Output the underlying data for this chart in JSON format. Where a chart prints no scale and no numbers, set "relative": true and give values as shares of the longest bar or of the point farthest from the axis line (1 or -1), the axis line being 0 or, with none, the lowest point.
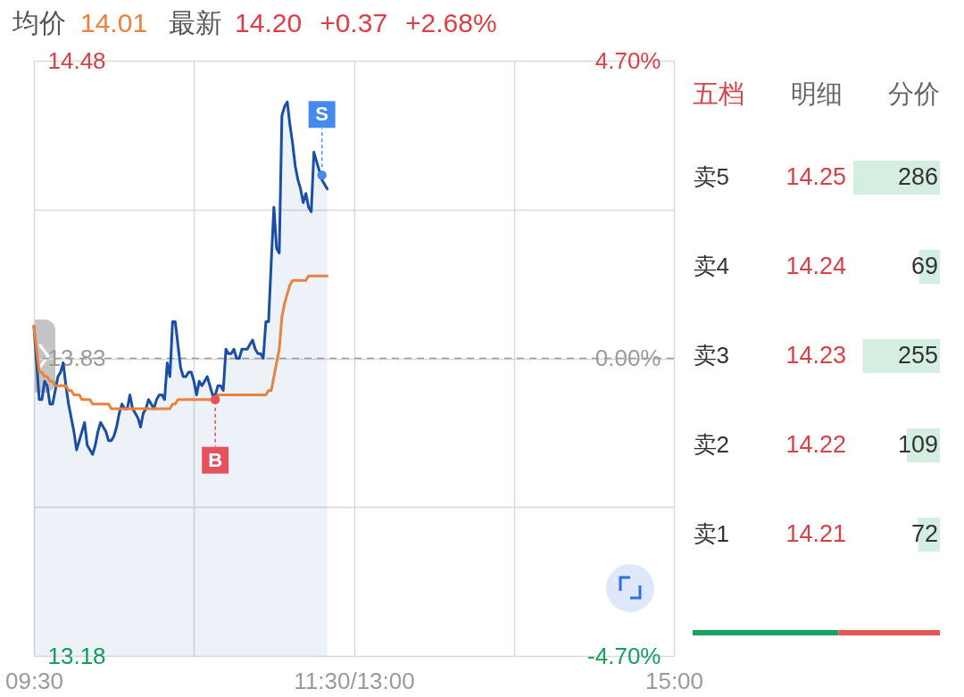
{
  "chart_data": [
    {
      "type": "line",
      "annotations": [
        "均价",
        "14.01",
        "最新",
        "14.20",
        "+0.37",
        "+2.68%"
      ],
      "categories": [
        "09:30",
        null,
        null,
        null,
        null,
        null,
        null,
        null,
        null,
        null,
        null,
        null,
        null,
        null,
        null,
        null,
        null,
        null,
        null,
        null,
        null,
        null,
        null,
        null,
        null,
        null,
        null,
        null,
        null,
        null,
        null,
        null,
        null,
        null,
        null,
        null,
        null,
        null,
        null,
        null,
        null,
        null,
        null,
        null,
        null,
        null,
        null,
        null,
        null,
        null,
        null,
        null,
        null,
        null,
        null,
        null,
        null,
        null,
        null,
        null,
        null,
        null,
        null,
        null,
        null,
        null,
        null,
        null,
        null,
        null,
        null,
        null,
        null,
        null,
        null,
        null,
        null,
        null,
        null,
        null,
        null,
        null,
        null,
        null,
        null,
        null,
        null,
        null,
        null,
        null,
        null,
        null,
        null,
        null,
        null,
        null,
        null,
        null,
        null,
        null,
        null,
        null,
        null,
        null,
        null,
        null,
        null,
        null,
        null,
        null,
        null,
        null,
        null,
        null,
        null,
        null,
        null,
        null,
        null,
        null,
        "11:30/13:00",
        null,
        null,
        null,
        null,
        null,
        null,
        null,
        null,
        null,
        null,
        null,
        null,
        null,
        null,
        null,
        null,
        null,
        null,
        null,
        null,
        null,
        null,
        null,
        null,
        null,
        null,
        null,
        null,
        null,
        null,
        null,
        null,
        null,
        null,
        null,
        null,
        null,
        null,
        null,
        null,
        null,
        null,
        null,
        null,
        null,
        null,
        null,
        null,
        null,
        null,
        null,
        null,
        null,
        null,
        null,
        null,
        null,
        null,
        null,
        null,
        null,
        null,
        null,
        null,
        null,
        null,
        null,
        null,
        null,
        null,
        null,
        null,
        null,
        null,
        null,
        null,
        null,
        null,
        null,
        null,
        null,
        null,
        null,
        null,
        null,
        null,
        null,
        null,
        null,
        null,
        null,
        null,
        null,
        null,
        null,
        null,
        null,
        null,
        null,
        null,
        null,
        null,
        null,
        null,
        null,
        null,
        null,
        null,
        null,
        null,
        null,
        null,
        null,
        null,
        null,
        null,
        null,
        null,
        null,
        "15:00"
      ],
      "series": [
        {
          "type": "area",
          "color": "#1a4da5",
          "values": [
            13.9,
            13.82,
            13.74,
            13.74,
            13.78,
            13.77,
            13.73,
            13.73,
            13.76,
            13.79,
            13.8,
            13.82,
            13.77,
            13.73,
            13.7,
            13.67,
            13.63,
            13.65,
            13.67,
            13.69,
            13.64,
            13.63,
            13.62,
            13.64,
            13.67,
            13.69,
            13.68,
            13.67,
            13.65,
            13.65,
            13.66,
            13.68,
            13.71,
            13.73,
            13.72,
            13.72,
            13.75,
            13.72,
            13.71,
            13.7,
            13.68,
            13.71,
            13.72,
            13.74,
            13.73,
            13.72,
            13.74,
            13.75,
            13.75,
            13.74,
            13.82,
            13.79,
            13.91,
            13.91,
            13.86,
            13.81,
            13.79,
            13.79,
            13.8,
            13.8,
            13.78,
            13.75,
            13.78,
            13.77,
            13.78,
            13.79,
            13.77,
            13.75,
            13.75,
            13.77,
            13.77,
            13.76,
            13.85,
            13.84,
            13.84,
            13.85,
            13.83,
            13.83,
            13.85,
            13.85,
            13.85,
            13.86,
            13.87,
            13.85,
            13.84,
            13.84,
            13.83,
            13.91,
            13.91,
            14.04,
            14.16,
            14.07,
            14.06,
            14.36,
            14.38,
            14.39,
            14.34,
            14.3,
            14.25,
            14.22,
            14.2,
            14.17,
            14.19,
            14.16,
            14.15,
            14.28,
            14.26,
            14.24,
            14.22,
            14.21,
            14.2,
            null,
            null,
            null,
            null,
            null,
            null,
            null,
            null,
            null,
            null,
            null,
            null,
            null,
            null,
            null,
            null,
            null,
            null,
            null,
            null,
            null,
            null,
            null,
            null,
            null,
            null,
            null,
            null,
            null,
            null,
            null,
            null,
            null,
            null,
            null,
            null,
            null,
            null,
            null,
            null,
            null,
            null,
            null,
            null,
            null,
            null,
            null,
            null,
            null,
            null,
            null,
            null,
            null,
            null,
            null,
            null,
            null,
            null,
            null,
            null,
            null,
            null,
            null,
            null,
            null,
            null,
            null,
            null,
            null,
            null,
            null,
            null,
            null,
            null,
            null,
            null,
            null,
            null,
            null,
            null,
            null,
            null,
            null,
            null,
            null,
            null,
            null,
            null,
            null,
            null,
            null,
            null,
            null,
            null,
            null,
            null,
            null,
            null,
            null,
            null,
            null,
            null,
            null,
            null,
            null,
            null,
            null,
            null,
            null,
            null,
            null,
            null,
            null,
            null,
            null,
            null,
            null,
            null,
            null,
            null,
            null,
            null,
            null,
            null,
            null,
            null,
            null,
            null,
            null,
            null
          ]
        },
        {
          "color": "#e8823c",
          "values": [
            13.9,
            13.85,
            13.8,
            13.8,
            13.79,
            13.79,
            13.78,
            13.78,
            13.77,
            13.77,
            13.77,
            13.77,
            13.77,
            13.76,
            13.76,
            13.75,
            13.75,
            13.75,
            13.74,
            13.74,
            13.74,
            13.74,
            13.73,
            13.73,
            13.73,
            13.73,
            13.73,
            13.73,
            13.73,
            13.72,
            13.72,
            13.72,
            13.72,
            13.72,
            13.72,
            13.72,
            13.72,
            13.72,
            13.72,
            13.72,
            13.72,
            13.72,
            13.72,
            13.72,
            13.72,
            13.72,
            13.72,
            13.72,
            13.72,
            13.72,
            13.72,
            13.72,
            13.73,
            13.73,
            13.74,
            13.74,
            13.74,
            13.74,
            13.74,
            13.74,
            13.74,
            13.74,
            13.74,
            13.74,
            13.74,
            13.74,
            13.74,
            13.74,
            13.74,
            13.75,
            13.75,
            13.75,
            13.75,
            13.75,
            13.75,
            13.75,
            13.75,
            13.75,
            13.75,
            13.75,
            13.75,
            13.75,
            13.75,
            13.75,
            13.75,
            13.75,
            13.75,
            13.75,
            13.76,
            13.76,
            13.79,
            13.82,
            13.85,
            13.92,
            13.95,
            13.97,
            13.99,
            14.0,
            14.0,
            14.0,
            14.0,
            14.0,
            14.0,
            14.01,
            14.01,
            14.01,
            14.01,
            14.01,
            14.01,
            14.01,
            14.01,
            null,
            null,
            null,
            null,
            null,
            null,
            null,
            null,
            null,
            null,
            null,
            null,
            null,
            null,
            null,
            null,
            null,
            null,
            null,
            null,
            null,
            null,
            null,
            null,
            null,
            null,
            null,
            null,
            null,
            null,
            null,
            null,
            null,
            null,
            null,
            null,
            null,
            null,
            null,
            null,
            null,
            null,
            null,
            null,
            null,
            null,
            null,
            null,
            null,
            null,
            null,
            null,
            null,
            null,
            null,
            null,
            null,
            null,
            null,
            null,
            null,
            null,
            null,
            null,
            null,
            null,
            null,
            null,
            null,
            null,
            null,
            null,
            null,
            null,
            null,
            null,
            null,
            null,
            null,
            null,
            null,
            null,
            null,
            null,
            null,
            null,
            null,
            null,
            null,
            null,
            null,
            null,
            null,
            null,
            null,
            null,
            null,
            null,
            null,
            null,
            null,
            null,
            null,
            null,
            null,
            null,
            null,
            null,
            null,
            null,
            null,
            null,
            null,
            null,
            null,
            null,
            null,
            null,
            null,
            null,
            null,
            null,
            null,
            null,
            null,
            null,
            null,
            null,
            null,
            null
          ]
        },
        {
          "type": "scatter",
          "name": "B",
          "color": "#e6525c",
          "values": [
            null,
            null,
            null,
            null,
            null,
            null,
            null,
            null,
            null,
            null,
            null,
            null,
            null,
            null,
            null,
            null,
            null,
            null,
            null,
            null,
            null,
            null,
            null,
            null,
            null,
            null,
            null,
            null,
            null,
            null,
            null,
            null,
            null,
            null,
            null,
            null,
            null,
            null,
            null,
            null,
            null,
            null,
            null,
            null,
            null,
            null,
            null,
            null,
            null,
            null,
            null,
            null,
            null,
            null,
            null,
            null,
            null,
            null,
            null,
            null,
            null,
            null,
            null,
            null,
            null,
            null,
            null,
            null,
            13.74,
            null,
            null,
            null,
            null,
            null,
            null,
            null,
            null,
            null,
            null,
            null,
            null,
            null,
            null,
            null,
            null,
            null,
            null,
            null,
            null,
            null,
            null,
            null,
            null,
            null,
            null,
            null,
            null,
            null,
            null,
            null,
            null,
            null,
            null,
            null,
            null,
            null,
            null,
            null,
            null,
            null,
            null,
            null,
            null,
            null,
            null,
            null,
            null,
            null,
            null,
            null,
            null,
            null,
            null,
            null,
            null,
            null,
            null,
            null,
            null,
            null,
            null,
            null,
            null,
            null,
            null,
            null,
            null,
            null,
            null,
            null,
            null,
            null,
            null,
            null,
            null,
            null,
            null,
            null,
            null,
            null,
            null,
            null,
            null,
            null,
            null,
            null,
            null,
            null,
            null,
            null,
            null,
            null,
            null,
            null,
            null,
            null,
            null,
            null,
            null,
            null,
            null,
            null,
            null,
            null,
            null,
            null,
            null,
            null,
            null,
            null,
            null,
            null,
            null,
            null,
            null,
            null,
            null,
            null,
            null,
            null,
            null,
            null,
            null,
            null,
            null,
            null,
            null,
            null,
            null,
            null,
            null,
            null,
            null,
            null,
            null,
            null,
            null,
            null,
            null,
            null,
            null,
            null,
            null,
            null,
            null,
            null,
            null,
            null,
            null,
            null,
            null,
            null,
            null,
            null,
            null,
            null,
            null,
            null,
            null,
            null,
            null,
            null,
            null,
            null,
            null,
            null,
            null,
            null,
            null,
            null,
            null
          ]
        },
        {
          "type": "scatter",
          "name": "S",
          "color": "#4588ee",
          "values": [
            null,
            null,
            null,
            null,
            null,
            null,
            null,
            null,
            null,
            null,
            null,
            null,
            null,
            null,
            null,
            null,
            null,
            null,
            null,
            null,
            null,
            null,
            null,
            null,
            null,
            null,
            null,
            null,
            null,
            null,
            null,
            null,
            null,
            null,
            null,
            null,
            null,
            null,
            null,
            null,
            null,
            null,
            null,
            null,
            null,
            null,
            null,
            null,
            null,
            null,
            null,
            null,
            null,
            null,
            null,
            null,
            null,
            null,
            null,
            null,
            null,
            null,
            null,
            null,
            null,
            null,
            null,
            null,
            null,
            null,
            null,
            null,
            null,
            null,
            null,
            null,
            null,
            null,
            null,
            null,
            null,
            null,
            null,
            null,
            null,
            null,
            null,
            null,
            null,
            null,
            null,
            null,
            null,
            null,
            null,
            null,
            null,
            null,
            null,
            null,
            null,
            null,
            null,
            null,
            null,
            null,
            null,
            null,
            14.23,
            null,
            null,
            null,
            null,
            null,
            null,
            null,
            null,
            null,
            null,
            null,
            null,
            null,
            null,
            null,
            null,
            null,
            null,
            null,
            null,
            null,
            null,
            null,
            null,
            null,
            null,
            null,
            null,
            null,
            null,
            null,
            null,
            null,
            null,
            null,
            null,
            null,
            null,
            null,
            null,
            null,
            null,
            null,
            null,
            null,
            null,
            null,
            null,
            null,
            null,
            null,
            null,
            null,
            null,
            null,
            null,
            null,
            null,
            null,
            null,
            null,
            null,
            null,
            null,
            null,
            null,
            null,
            null,
            null,
            null,
            null,
            null,
            null,
            null,
            null,
            null,
            null,
            null,
            null,
            null,
            null,
            null,
            null,
            null,
            null,
            null,
            null,
            null,
            null,
            null,
            null,
            null,
            null,
            null,
            null,
            null,
            null,
            null,
            null,
            null,
            null,
            null,
            null,
            null,
            null,
            null,
            null,
            null,
            null,
            null,
            null,
            null,
            null,
            null,
            null,
            null,
            null,
            null,
            null,
            null,
            null,
            null,
            null,
            null,
            null,
            null,
            null,
            null,
            null,
            null,
            null,
            null
          ]
        }
      ],
      "ylim": [
        13.18,
        14.48
      ],
      "yticks": [
        13.18,
        {
          "value": 13.505,
          "label": null
        },
        13.83,
        {
          "value": 14.155,
          "label": null
        },
        14.48
      ],
      "y2lim": [
        -4.7,
        4.7
      ],
      "y2ticks": [
        {
          "value": -4.7,
          "label": "-4.70%"
        },
        {
          "value": 0,
          "label": "0.00%"
        },
        {
          "value": 4.7,
          "label": "4.70%"
        }
      ],
      "ref_lines": [
        {
          "axis": "y",
          "value": 13.83,
          "color": "#9a9a9a",
          "line_style": "dashed"
        }
      ],
      "grid": true
    },
    {
      "type": "bar",
      "orientation": "horizontal",
      "categories": [
        "卖5",
        "卖4",
        "卖3",
        "卖2",
        "卖1"
      ],
      "values": [
        286,
        69,
        255,
        109,
        72
      ],
      "color": "#d4eee1",
      "data_labels": true,
      "tick_labels": "y",
      "annotations": [
        "五档",
        "明细",
        "分价",
        "14.25",
        "14.24",
        "14.23",
        "14.22",
        "14.21"
      ]
    },
    {
      "type": "bar",
      "orientation": "horizontal",
      "stacked": true,
      "relative": true,
      "categories": [
        null
      ],
      "series": [
        {
          "color": "#1aa260",
          "values": [
            0.59
          ]
        },
        {
          "color": "#e35656",
          "values": [
            0.41
          ]
        }
      ]
    }
  ]
}
